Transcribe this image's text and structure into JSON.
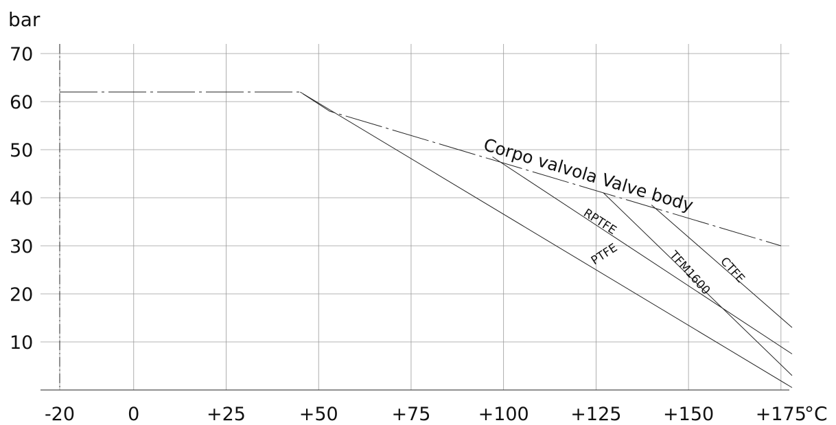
{
  "chart_data": {
    "type": "line",
    "title": "",
    "xlabel": "°C",
    "ylabel": "bar",
    "xlim": [
      -20,
      178
    ],
    "ylim": [
      0,
      70
    ],
    "grid": true,
    "legend": "none",
    "x_ticks": [
      -20,
      0,
      25,
      50,
      75,
      100,
      125,
      150,
      175
    ],
    "x_tick_labels": [
      "-20",
      "0",
      "+25",
      "+50",
      "+75",
      "+100",
      "+125",
      "+150",
      "+175"
    ],
    "y_ticks": [
      10,
      20,
      30,
      40,
      50,
      60,
      70
    ],
    "y_tick_labels": [
      "10",
      "20",
      "30",
      "40",
      "50",
      "60",
      "70"
    ],
    "series": [
      {
        "name": "Corpo valvola Valve body",
        "style": "dashed",
        "points": [
          [
            -20,
            62
          ],
          [
            45,
            62
          ],
          [
            53,
            58
          ],
          [
            175,
            30
          ]
        ]
      },
      {
        "name": "PTFE",
        "style": "solid",
        "points": [
          [
            45,
            62
          ],
          [
            178,
            0.5
          ]
        ]
      },
      {
        "name": "RPTFE",
        "style": "solid",
        "points": [
          [
            97,
            48.5
          ],
          [
            178,
            7.5
          ]
        ]
      },
      {
        "name": "TFM1600",
        "style": "solid",
        "points": [
          [
            127,
            41
          ],
          [
            178,
            3
          ]
        ]
      },
      {
        "name": "CTFE",
        "style": "solid",
        "points": [
          [
            140,
            38.5
          ],
          [
            178,
            13
          ]
        ]
      }
    ],
    "annotations": [
      "Corpo valvola Valve body",
      "RPTFE",
      "PTFE",
      "TFM1600",
      "CTFE"
    ]
  }
}
